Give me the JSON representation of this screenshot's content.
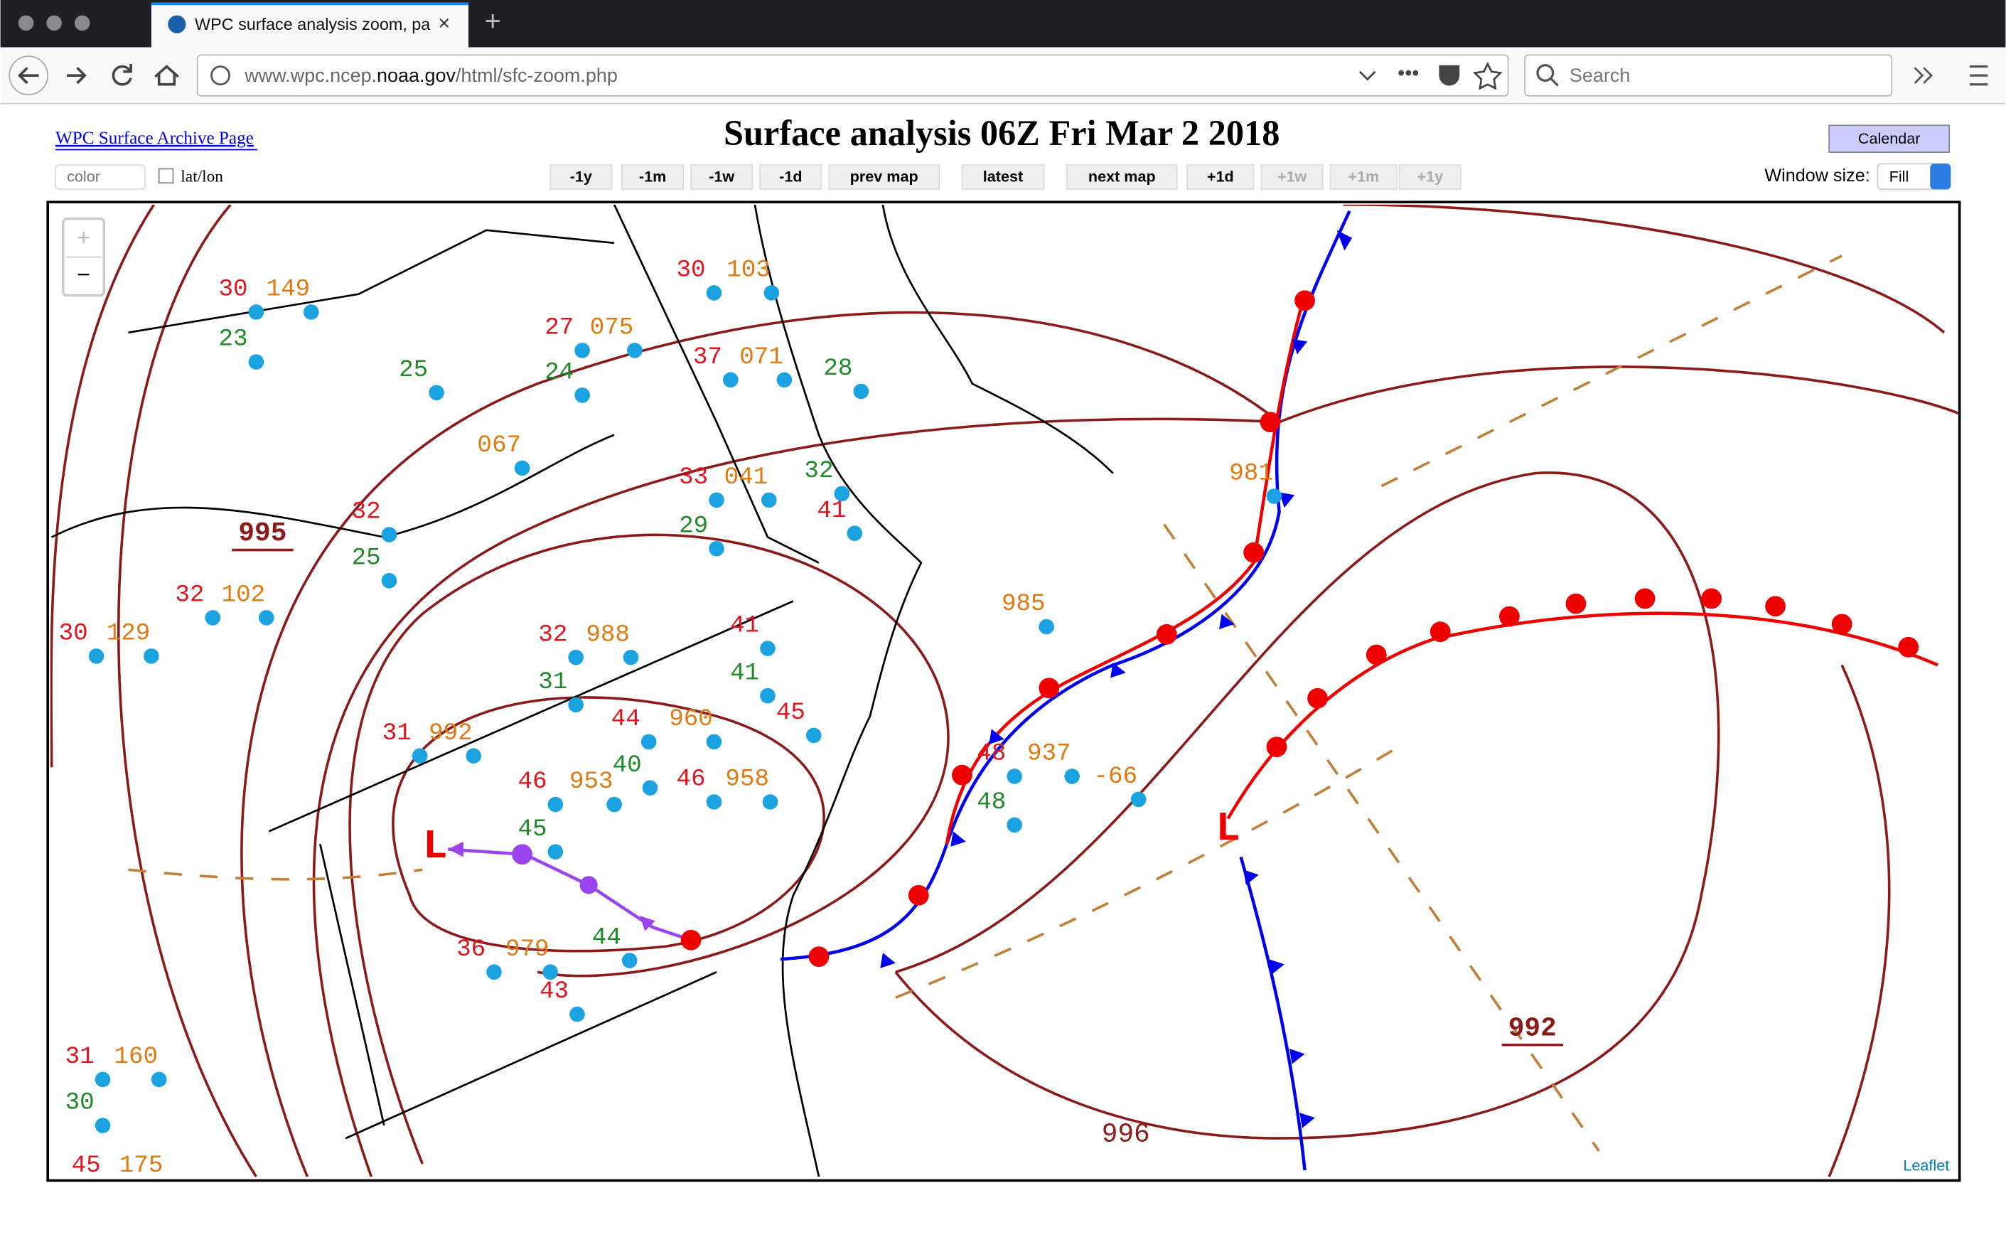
{
  "browser": {
    "tab_title": "WPC surface analysis zoom, pa",
    "url_prefix": "www.wpc.ncep.",
    "url_domain": "noaa.gov",
    "url_path": "/html/sfc-zoom.php",
    "search_placeholder": "Search"
  },
  "page": {
    "archive_link": "WPC Surface Archive Page",
    "title": "Surface analysis 06Z Fri Mar 2 2018",
    "calendar_button": "Calendar",
    "color_select": "color",
    "latlon_label": "lat/lon",
    "nav_buttons": [
      "-1y",
      "-1m",
      "-1w",
      "-1d",
      "prev map",
      "latest",
      "next map",
      "+1d",
      "+1w",
      "+1m",
      "+1y"
    ],
    "window_size_label": "Window size:",
    "window_size_value": "Fill"
  },
  "map": {
    "zoom_in": "+",
    "zoom_out": "−",
    "attribution": "Leaflet",
    "isobar_labels": [
      "995",
      "992",
      "996"
    ],
    "low_labels": [
      "L",
      "L"
    ],
    "station_labels": [
      "30",
      "149",
      "23",
      "25",
      "24",
      "27",
      "075",
      "30",
      "103",
      "37",
      "071",
      "28",
      "33",
      "041",
      "29",
      "32",
      "41",
      "32",
      "25",
      "067",
      "32",
      "102",
      "30",
      "129",
      "32",
      "988",
      "31",
      "41",
      "41",
      "45",
      "44",
      "960",
      "40",
      "46",
      "953",
      "45",
      "46",
      "958",
      "36",
      "979",
      "44",
      "43",
      "48",
      "48",
      "937",
      "-66",
      "985",
      "981",
      "31",
      "992",
      "175",
      "45",
      "160",
      "31",
      "30"
    ]
  }
}
